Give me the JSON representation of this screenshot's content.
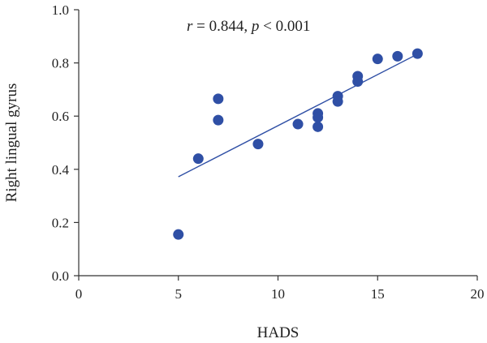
{
  "chart_data": {
    "type": "scatter",
    "xlabel": "HADS",
    "ylabel": "Right lingual gyrus",
    "xlim": [
      0,
      20
    ],
    "ylim": [
      0.0,
      1.0
    ],
    "x_ticks": [
      0,
      5,
      10,
      15,
      20
    ],
    "x_tick_labels": [
      "0",
      "5",
      "10",
      "15",
      "20"
    ],
    "y_ticks": [
      0.0,
      0.2,
      0.4,
      0.6,
      0.8,
      1.0
    ],
    "y_tick_labels": [
      "0.0",
      "0.2",
      "0.4",
      "0.6",
      "0.8",
      "1.0"
    ],
    "annotation": {
      "r_symbol": "r",
      "r_text": " = 0.844, ",
      "p_symbol": "p",
      "p_text": " < 0.001"
    },
    "points": [
      {
        "x": 5,
        "y": 0.155
      },
      {
        "x": 6,
        "y": 0.44
      },
      {
        "x": 7,
        "y": 0.665
      },
      {
        "x": 7,
        "y": 0.585
      },
      {
        "x": 9,
        "y": 0.495
      },
      {
        "x": 11,
        "y": 0.57
      },
      {
        "x": 12,
        "y": 0.61
      },
      {
        "x": 12,
        "y": 0.595
      },
      {
        "x": 12,
        "y": 0.56
      },
      {
        "x": 13,
        "y": 0.675
      },
      {
        "x": 13,
        "y": 0.655
      },
      {
        "x": 14,
        "y": 0.75
      },
      {
        "x": 14,
        "y": 0.73
      },
      {
        "x": 15,
        "y": 0.815
      },
      {
        "x": 16,
        "y": 0.825
      },
      {
        "x": 17,
        "y": 0.835
      }
    ],
    "trendline": {
      "x": [
        5,
        17
      ],
      "y": [
        0.372,
        0.833
      ]
    },
    "grid": false,
    "colors": {
      "points": "#2f4fa5",
      "line": "#2f4fa5",
      "axis": "#333333"
    }
  }
}
